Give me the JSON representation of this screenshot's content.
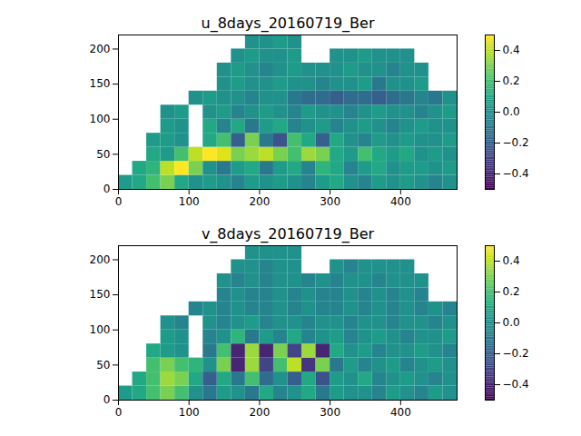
{
  "chart_data": [
    {
      "type": "heatmap",
      "title": "u_8days_20160719_Ber",
      "x_edges": [
        0,
        20,
        40,
        60,
        80,
        100,
        120,
        140,
        160,
        180,
        200,
        220,
        240,
        260,
        280,
        300,
        320,
        340,
        360,
        380,
        400,
        420,
        440,
        460,
        480
      ],
      "y_edges": [
        0,
        20,
        40,
        60,
        80,
        100,
        120,
        140,
        160,
        180,
        200,
        220
      ],
      "values": [
        [
          0.05,
          0.1,
          0.2,
          0.3,
          0.1,
          0.0,
          0.05,
          0.0,
          -0.05,
          0.05,
          0.0,
          0.05,
          0.0,
          -0.05,
          0.05,
          0.1,
          0.0,
          -0.05,
          0.05,
          0.0,
          0.05,
          0.0,
          -0.05,
          0.0
        ],
        [
          null,
          0.1,
          0.15,
          0.4,
          0.5,
          0.3,
          0.0,
          -0.1,
          0.05,
          0.1,
          -0.1,
          0.05,
          0.1,
          -0.05,
          0.15,
          0.1,
          -0.05,
          0.05,
          0.1,
          0.0,
          0.05,
          0.05,
          0.0,
          0.05
        ],
        [
          null,
          null,
          0.1,
          0.05,
          0.2,
          0.4,
          0.5,
          0.45,
          0.3,
          0.35,
          0.4,
          0.3,
          0.2,
          0.35,
          0.3,
          0.1,
          0.05,
          0.2,
          0.1,
          0.05,
          0.1,
          0.0,
          0.05,
          0.0
        ],
        [
          null,
          null,
          0.05,
          0.05,
          0.0,
          null,
          0.1,
          0.2,
          -0.2,
          0.3,
          -0.1,
          -0.25,
          0.2,
          0.1,
          -0.2,
          0.1,
          0.0,
          -0.05,
          0.05,
          0.0,
          0.05,
          0.0,
          0.0,
          0.05
        ],
        [
          null,
          null,
          null,
          0.05,
          0.0,
          null,
          0.1,
          -0.05,
          0.1,
          -0.1,
          0.05,
          0.1,
          -0.05,
          0.0,
          0.05,
          -0.05,
          0.0,
          0.05,
          0.0,
          -0.05,
          0.0,
          0.05,
          0.0,
          0.0
        ],
        [
          null,
          null,
          null,
          0.0,
          0.05,
          null,
          0.0,
          0.05,
          -0.05,
          0.0,
          0.05,
          0.0,
          -0.05,
          0.05,
          0.0,
          0.0,
          -0.05,
          0.0,
          0.05,
          0.0,
          0.0,
          -0.05,
          0.0,
          0.05
        ],
        [
          null,
          null,
          null,
          null,
          null,
          0.0,
          0.05,
          0.0,
          0.0,
          -0.05,
          0.0,
          0.0,
          -0.1,
          -0.15,
          -0.15,
          -0.2,
          -0.15,
          -0.15,
          -0.2,
          -0.15,
          -0.1,
          -0.05,
          -0.1,
          0.0
        ],
        [
          null,
          null,
          null,
          null,
          null,
          null,
          null,
          0.0,
          0.05,
          0.0,
          0.0,
          0.05,
          0.0,
          0.0,
          -0.05,
          0.0,
          0.0,
          0.05,
          -0.1,
          0.0,
          0.0,
          0.05,
          null,
          null
        ],
        [
          null,
          null,
          null,
          null,
          null,
          null,
          null,
          0.0,
          0.05,
          0.0,
          -0.05,
          0.0,
          0.05,
          0.0,
          0.0,
          0.0,
          0.05,
          0.0,
          0.0,
          -0.05,
          0.0,
          0.0,
          null,
          null
        ],
        [
          null,
          null,
          null,
          null,
          null,
          null,
          null,
          null,
          0.0,
          0.05,
          0.0,
          0.0,
          0.05,
          null,
          null,
          0.0,
          0.0,
          0.05,
          0.0,
          0.0,
          0.0,
          null,
          null,
          null
        ],
        [
          null,
          null,
          null,
          null,
          null,
          null,
          null,
          null,
          null,
          0.0,
          0.0,
          0.05,
          0.0,
          null,
          null,
          null,
          null,
          null,
          null,
          null,
          null,
          null,
          null,
          null
        ]
      ],
      "xlim": [
        0,
        480
      ],
      "ylim": [
        0,
        220
      ],
      "xticks": [
        0,
        100,
        200,
        300,
        400
      ],
      "yticks": [
        0,
        50,
        100,
        150,
        200
      ],
      "colorbar": {
        "range": [
          -0.5,
          0.5
        ],
        "ticks": [
          {
            "value": -0.4,
            "label": "−0.4"
          },
          {
            "value": -0.2,
            "label": "−0.2"
          },
          {
            "value": 0,
            "label": "0.0"
          },
          0.2,
          0.4
        ],
        "color": "viridis"
      }
    },
    {
      "type": "heatmap",
      "title": "v_8days_20160719_Ber",
      "x_edges": [
        0,
        20,
        40,
        60,
        80,
        100,
        120,
        140,
        160,
        180,
        200,
        220,
        240,
        260,
        280,
        300,
        320,
        340,
        360,
        380,
        400,
        420,
        440,
        460,
        480
      ],
      "y_edges": [
        0,
        20,
        40,
        60,
        80,
        100,
        120,
        140,
        160,
        180,
        200,
        220
      ],
      "values": [
        [
          0.05,
          0.1,
          0.2,
          0.3,
          0.2,
          0.0,
          -0.1,
          0.05,
          0.0,
          -0.1,
          0.1,
          -0.05,
          0.0,
          0.1,
          -0.1,
          0.05,
          0.0,
          0.0,
          -0.05,
          0.05,
          0.0,
          -0.05,
          0.05,
          0.0
        ],
        [
          null,
          0.1,
          0.2,
          0.35,
          0.3,
          0.1,
          -0.2,
          0.1,
          -0.1,
          0.2,
          -0.15,
          0.0,
          -0.2,
          0.1,
          -0.25,
          0.05,
          0.0,
          0.1,
          -0.05,
          0.0,
          0.05,
          0.0,
          -0.05,
          0.0
        ],
        [
          null,
          null,
          0.2,
          0.3,
          0.2,
          0.15,
          0.0,
          0.3,
          -0.4,
          0.35,
          -0.3,
          0.2,
          0.4,
          -0.35,
          0.3,
          -0.1,
          0.05,
          -0.05,
          0.0,
          0.05,
          -0.05,
          0.0,
          0.05,
          0.0
        ],
        [
          null,
          null,
          0.1,
          0.05,
          0.0,
          null,
          -0.1,
          0.2,
          -0.4,
          0.35,
          -0.4,
          0.3,
          -0.3,
          0.35,
          -0.4,
          0.1,
          0.0,
          0.05,
          -0.05,
          0.0,
          0.0,
          0.05,
          0.0,
          -0.05
        ],
        [
          null,
          null,
          null,
          0.05,
          0.0,
          null,
          -0.05,
          0.0,
          0.15,
          -0.1,
          0.05,
          -0.05,
          0.1,
          -0.05,
          0.0,
          0.05,
          -0.05,
          0.0,
          0.05,
          0.0,
          -0.05,
          0.0,
          0.0,
          0.05
        ],
        [
          null,
          null,
          null,
          0.0,
          -0.05,
          null,
          0.0,
          -0.05,
          0.0,
          0.05,
          -0.05,
          0.0,
          0.0,
          -0.05,
          0.0,
          0.0,
          -0.05,
          0.0,
          0.0,
          -0.05,
          0.0,
          0.0,
          -0.05,
          0.0
        ],
        [
          null,
          null,
          null,
          null,
          null,
          -0.05,
          0.0,
          -0.05,
          0.0,
          -0.05,
          -0.05,
          0.0,
          -0.05,
          0.0,
          -0.05,
          -0.05,
          0.0,
          -0.05,
          0.0,
          -0.05,
          0.0,
          -0.05,
          0.0,
          -0.05
        ],
        [
          null,
          null,
          null,
          null,
          null,
          null,
          null,
          -0.05,
          0.0,
          -0.05,
          -0.05,
          0.0,
          -0.05,
          0.0,
          -0.05,
          -0.05,
          0.0,
          -0.05,
          0.0,
          -0.05,
          0.0,
          -0.05,
          null,
          null
        ],
        [
          null,
          null,
          null,
          null,
          null,
          null,
          null,
          0.0,
          -0.05,
          0.0,
          -0.05,
          0.0,
          0.0,
          -0.05,
          0.0,
          -0.05,
          0.0,
          0.0,
          -0.05,
          0.0,
          0.0,
          0.0,
          null,
          null
        ],
        [
          null,
          null,
          null,
          null,
          null,
          null,
          null,
          null,
          0.0,
          0.0,
          -0.05,
          0.0,
          0.0,
          null,
          null,
          0.0,
          -0.05,
          0.0,
          0.0,
          0.0,
          0.0,
          null,
          null,
          null
        ],
        [
          null,
          null,
          null,
          null,
          null,
          null,
          null,
          null,
          null,
          0.0,
          0.0,
          0.0,
          0.0,
          null,
          null,
          null,
          null,
          null,
          null,
          null,
          null,
          null,
          null,
          null
        ]
      ],
      "xlim": [
        0,
        480
      ],
      "ylim": [
        0,
        220
      ],
      "xticks": [
        0,
        100,
        200,
        300,
        400
      ],
      "yticks": [
        0,
        50,
        100,
        150,
        200
      ],
      "colorbar": {
        "range": [
          -0.5,
          0.5
        ],
        "ticks": [
          {
            "value": -0.4,
            "label": "−0.4"
          },
          {
            "value": -0.2,
            "label": "−0.2"
          },
          {
            "value": 0,
            "label": "0.0"
          },
          0.2,
          0.4
        ],
        "color": "viridis"
      }
    }
  ]
}
